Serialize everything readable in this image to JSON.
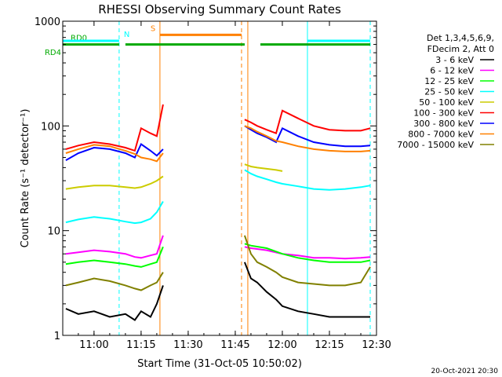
{
  "chart_data": {
    "type": "line",
    "title": "RHESSI Observing Summary Count Rates",
    "xlabel": "Start Time (31-Oct-05 10:50:02)",
    "ylabel": "Count Rate (s⁻¹ detector⁻¹)",
    "y_scale": "log",
    "ylim": [
      1,
      1000
    ],
    "xlim": [
      "10:50:02",
      "12:30:00"
    ],
    "x_ticks": [
      "11:00",
      "11:15",
      "11:30",
      "11:45",
      "12:00",
      "12:15",
      "12:30"
    ],
    "y_ticks": [
      "1",
      "10",
      "100",
      "1000"
    ],
    "legend_header": [
      "Det 1,3,4,5,6,9,",
      "FDecim 2, Att 0"
    ],
    "series": [
      {
        "name": "3 - 6 keV",
        "color": "#000000",
        "seg1": {
          "t": [
            "10:51",
            "10:55",
            "11:00",
            "11:05",
            "11:10",
            "11:13",
            "11:15",
            "11:18",
            "11:20",
            "11:22"
          ],
          "v": [
            1.8,
            1.6,
            1.7,
            1.5,
            1.6,
            1.4,
            1.7,
            1.5,
            2.0,
            3.0
          ]
        },
        "seg2": {
          "t": [
            "11:48",
            "11:50",
            "11:52",
            "11:55",
            "11:58",
            "12:00",
            "12:05",
            "12:10",
            "12:15",
            "12:20",
            "12:25",
            "12:28"
          ],
          "v": [
            5,
            3.5,
            3.2,
            2.6,
            2.2,
            1.9,
            1.7,
            1.6,
            1.5,
            1.5,
            1.5,
            1.5
          ]
        }
      },
      {
        "name": "6 - 12 keV",
        "color": "#ff00ff",
        "seg1": {
          "t": [
            "10:51",
            "10:55",
            "11:00",
            "11:05",
            "11:10",
            "11:13",
            "11:15",
            "11:18",
            "11:20",
            "11:22"
          ],
          "v": [
            6,
            6.2,
            6.5,
            6.3,
            6.0,
            5.6,
            5.5,
            5.8,
            6.0,
            9.0
          ]
        },
        "seg2": {
          "t": [
            "11:48",
            "11:50",
            "11:55",
            "12:00",
            "12:05",
            "12:10",
            "12:15",
            "12:20",
            "12:25",
            "12:28"
          ],
          "v": [
            7,
            6.8,
            6.5,
            6.0,
            5.8,
            5.5,
            5.5,
            5.4,
            5.5,
            5.6
          ]
        }
      },
      {
        "name": "12 - 25 keV",
        "color": "#00ff00",
        "seg1": {
          "t": [
            "10:51",
            "10:55",
            "11:00",
            "11:05",
            "11:10",
            "11:13",
            "11:15",
            "11:18",
            "11:20",
            "11:22"
          ],
          "v": [
            4.8,
            5.0,
            5.2,
            5.0,
            4.8,
            4.6,
            4.5,
            4.8,
            5.0,
            7.0
          ]
        },
        "seg2": {
          "t": [
            "11:48",
            "11:50",
            "11:55",
            "12:00",
            "12:05",
            "12:10",
            "12:15",
            "12:20",
            "12:25",
            "12:28"
          ],
          "v": [
            7.5,
            7.2,
            6.8,
            6.0,
            5.5,
            5.2,
            5.0,
            5.0,
            5.0,
            5.2
          ]
        }
      },
      {
        "name": "25 - 50 keV",
        "color": "#00ffff",
        "seg1": {
          "t": [
            "10:51",
            "10:55",
            "11:00",
            "11:05",
            "11:10",
            "11:13",
            "11:15",
            "11:18",
            "11:20",
            "11:22"
          ],
          "v": [
            12,
            12.8,
            13.5,
            13,
            12.2,
            11.8,
            12,
            13,
            15,
            19
          ]
        },
        "seg2": {
          "t": [
            "11:48",
            "11:50",
            "11:52",
            "11:55",
            "11:58",
            "12:00",
            "12:05",
            "12:10",
            "12:15",
            "12:20",
            "12:25",
            "12:28"
          ],
          "v": [
            38,
            35,
            33,
            31,
            29,
            28,
            26.5,
            25,
            24.5,
            25,
            26,
            27
          ]
        }
      },
      {
        "name": "50 - 100 keV",
        "color": "#cccc00",
        "seg1": {
          "t": [
            "10:51",
            "10:55",
            "11:00",
            "11:05",
            "11:10",
            "11:13",
            "11:15",
            "11:18",
            "11:20",
            "11:22"
          ],
          "v": [
            25,
            26,
            27,
            27,
            26,
            25.5,
            26,
            28,
            30,
            33
          ]
        },
        "seg2": {
          "t": [
            "11:48",
            "11:50",
            "11:52",
            "11:55",
            "11:58",
            "12:00"
          ],
          "v": [
            43,
            41,
            40,
            39,
            38,
            37
          ]
        }
      },
      {
        "name": "100 - 300 keV",
        "color": "#ff0000",
        "seg1": {
          "t": [
            "10:51",
            "10:55",
            "11:00",
            "11:05",
            "11:10",
            "11:13",
            "11:15",
            "11:18",
            "11:20",
            "11:22"
          ],
          "v": [
            60,
            65,
            70,
            67,
            62,
            58,
            95,
            85,
            80,
            160
          ]
        },
        "seg2": {
          "t": [
            "11:48",
            "11:50",
            "11:52",
            "11:55",
            "11:58",
            "12:00",
            "12:05",
            "12:10",
            "12:15",
            "12:20",
            "12:25",
            "12:28"
          ],
          "v": [
            115,
            108,
            100,
            92,
            85,
            140,
            118,
            100,
            92,
            90,
            90,
            95
          ]
        }
      },
      {
        "name": "300 - 800 keV",
        "color": "#0000ff",
        "seg1": {
          "t": [
            "10:51",
            "10:55",
            "11:00",
            "11:05",
            "11:10",
            "11:13",
            "11:15",
            "11:18",
            "11:20",
            "11:22"
          ],
          "v": [
            47,
            55,
            62,
            60,
            55,
            50,
            67,
            58,
            52,
            60
          ]
        },
        "seg2": {
          "t": [
            "11:48",
            "11:50",
            "11:52",
            "11:55",
            "11:58",
            "12:00",
            "12:05",
            "12:10",
            "12:15",
            "12:20",
            "12:25",
            "12:28"
          ],
          "v": [
            100,
            92,
            85,
            78,
            70,
            95,
            80,
            70,
            66,
            64,
            64,
            65
          ]
        }
      },
      {
        "name": "800 - 7000 keV",
        "color": "#ff8000",
        "seg1": {
          "t": [
            "10:51",
            "10:55",
            "11:00",
            "11:05",
            "11:10",
            "11:13",
            "11:15",
            "11:18",
            "11:20",
            "11:22"
          ],
          "v": [
            55,
            60,
            66,
            64,
            58,
            54,
            50,
            48,
            46,
            55
          ]
        },
        "seg2": {
          "t": [
            "11:48",
            "11:50",
            "11:52",
            "11:55",
            "11:58",
            "12:00",
            "12:05",
            "12:10",
            "12:15",
            "12:20",
            "12:25",
            "12:28"
          ],
          "v": [
            100,
            95,
            88,
            80,
            72,
            70,
            64,
            60,
            58,
            57,
            57,
            58
          ]
        }
      },
      {
        "name": "7000 - 15000 keV",
        "color": "#808000",
        "seg1": {
          "t": [
            "10:51",
            "10:55",
            "11:00",
            "11:05",
            "11:10",
            "11:13",
            "11:15",
            "11:18",
            "11:20",
            "11:22"
          ],
          "v": [
            3,
            3.2,
            3.5,
            3.3,
            3.0,
            2.8,
            2.7,
            3.0,
            3.2,
            4.0
          ]
        },
        "seg2": {
          "t": [
            "11:48",
            "11:50",
            "11:52",
            "11:55",
            "11:58",
            "12:00",
            "12:05",
            "12:10",
            "12:15",
            "12:20",
            "12:25",
            "12:28"
          ],
          "v": [
            9,
            6,
            5,
            4.5,
            4,
            3.6,
            3.2,
            3.1,
            3.0,
            3.0,
            3.2,
            4.5
          ]
        }
      }
    ],
    "flag_lines": [
      {
        "label": "RD0",
        "label_side": "plot",
        "color": "#00aa00",
        "level": 600,
        "segments": [
          [
            "10:50",
            "11:08"
          ],
          [
            "11:10",
            "11:48"
          ],
          [
            "11:53",
            "12:28"
          ]
        ]
      },
      {
        "label": "N",
        "color": "#00ffff",
        "level": 650,
        "segments": [
          [
            "10:50",
            "11:08"
          ],
          [
            "12:08",
            "12:28"
          ]
        ]
      },
      {
        "label": "S",
        "color": "#ff8000",
        "level": 740,
        "segments": [
          [
            "11:21",
            "11:47"
          ]
        ]
      }
    ],
    "flag_axis_label": "RD4",
    "vertical_markers": [
      {
        "t": "11:08",
        "color": "#00ffff",
        "style": "dashed"
      },
      {
        "t": "11:21",
        "color": "#ff8000",
        "style": "solid"
      },
      {
        "t": "11:47",
        "color": "#ff8000",
        "style": "dashed"
      },
      {
        "t": "11:49",
        "color": "#ff8000",
        "style": "solid"
      },
      {
        "t": "12:08",
        "color": "#00ffff",
        "style": "solid"
      },
      {
        "t": "12:28",
        "color": "#00ffff",
        "style": "dashed"
      }
    ],
    "grid": false,
    "legend_placement": "right"
  },
  "footer_date": "20-Oct-2021 20:30"
}
